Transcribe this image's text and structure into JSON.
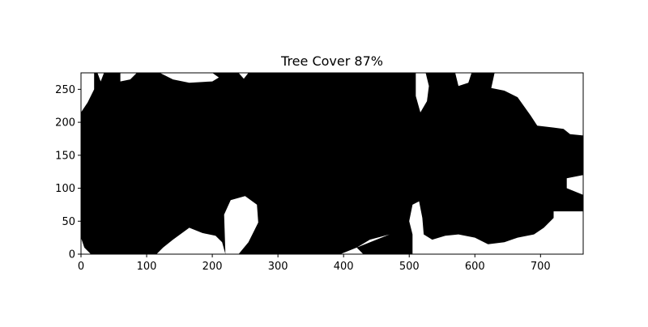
{
  "chart_data": {
    "type": "heatmap",
    "title": "Tree Cover 87%",
    "xlabel": "",
    "ylabel": "",
    "xlim": [
      0,
      765
    ],
    "ylim": [
      0,
      275
    ],
    "x_ticks": [
      0,
      100,
      200,
      300,
      400,
      500,
      600,
      700
    ],
    "y_ticks": [
      0,
      50,
      100,
      150,
      200,
      250
    ],
    "grid": false,
    "values_meaning": "binary mask: tree cover (black) vs. open ground (white)",
    "tree_cover_percent": 87,
    "colors": {
      "tree": "#000000",
      "open": "#ffffff"
    },
    "open_regions": [
      {
        "name": "top-left-corner",
        "polygon": [
          [
            0,
            275
          ],
          [
            20,
            275
          ],
          [
            20,
            250
          ],
          [
            10,
            230
          ],
          [
            0,
            215
          ]
        ]
      },
      {
        "name": "top-gap-1",
        "polygon": [
          [
            25,
            275
          ],
          [
            35,
            275
          ],
          [
            30,
            262
          ]
        ]
      },
      {
        "name": "top-gap-2",
        "polygon": [
          [
            60,
            275
          ],
          [
            85,
            275
          ],
          [
            75,
            265
          ],
          [
            60,
            262
          ]
        ]
      },
      {
        "name": "top-gap-3",
        "polygon": [
          [
            120,
            275
          ],
          [
            200,
            275
          ],
          [
            210,
            268
          ],
          [
            200,
            262
          ],
          [
            165,
            260
          ],
          [
            140,
            265
          ]
        ]
      },
      {
        "name": "top-gap-4",
        "polygon": [
          [
            240,
            275
          ],
          [
            255,
            275
          ],
          [
            248,
            266
          ]
        ]
      },
      {
        "name": "top-gap-5",
        "polygon": [
          [
            510,
            275
          ],
          [
            525,
            275
          ],
          [
            530,
            255
          ],
          [
            527,
            232
          ],
          [
            517,
            215
          ],
          [
            510,
            240
          ]
        ]
      },
      {
        "name": "top-gap-6",
        "polygon": [
          [
            570,
            275
          ],
          [
            595,
            275
          ],
          [
            590,
            260
          ],
          [
            575,
            255
          ]
        ]
      },
      {
        "name": "top-gap-7",
        "polygon": [
          [
            630,
            275
          ],
          [
            765,
            275
          ],
          [
            765,
            180
          ],
          [
            745,
            182
          ],
          [
            735,
            190
          ],
          [
            720,
            192
          ],
          [
            695,
            195
          ],
          [
            685,
            210
          ],
          [
            665,
            238
          ],
          [
            645,
            248
          ],
          [
            625,
            252
          ]
        ]
      },
      {
        "name": "bottom-left-notch",
        "polygon": [
          [
            0,
            0
          ],
          [
            15,
            0
          ],
          [
            5,
            10
          ],
          [
            0,
            25
          ]
        ]
      },
      {
        "name": "bottom-open-1",
        "polygon": [
          [
            115,
            0
          ],
          [
            220,
            0
          ],
          [
            215,
            18
          ],
          [
            205,
            28
          ],
          [
            185,
            32
          ],
          [
            165,
            40
          ],
          [
            140,
            22
          ],
          [
            125,
            10
          ]
        ]
      },
      {
        "name": "bottom-open-2",
        "polygon": [
          [
            220,
            0
          ],
          [
            240,
            0
          ],
          [
            255,
            18
          ],
          [
            265,
            38
          ],
          [
            270,
            48
          ],
          [
            268,
            75
          ],
          [
            250,
            88
          ],
          [
            228,
            82
          ],
          [
            218,
            60
          ]
        ]
      },
      {
        "name": "bottom-open-3",
        "polygon": [
          [
            395,
            0
          ],
          [
            505,
            0
          ],
          [
            505,
            30
          ],
          [
            500,
            50
          ],
          [
            505,
            75
          ],
          [
            515,
            80
          ],
          [
            520,
            55
          ],
          [
            522,
            30
          ],
          [
            535,
            22
          ],
          [
            555,
            28
          ],
          [
            575,
            30
          ],
          [
            600,
            25
          ],
          [
            620,
            15
          ],
          [
            645,
            18
          ],
          [
            665,
            25
          ],
          [
            690,
            30
          ],
          [
            705,
            40
          ],
          [
            720,
            55
          ],
          [
            720,
            65
          ],
          [
            765,
            65
          ],
          [
            765,
            0
          ],
          [
            430,
            0
          ],
          [
            420,
            10
          ],
          [
            440,
            22
          ],
          [
            470,
            30
          ]
        ]
      },
      {
        "name": "right-edge-notch",
        "polygon": [
          [
            765,
            120
          ],
          [
            765,
            90
          ],
          [
            740,
            100
          ],
          [
            740,
            115
          ]
        ]
      }
    ]
  }
}
